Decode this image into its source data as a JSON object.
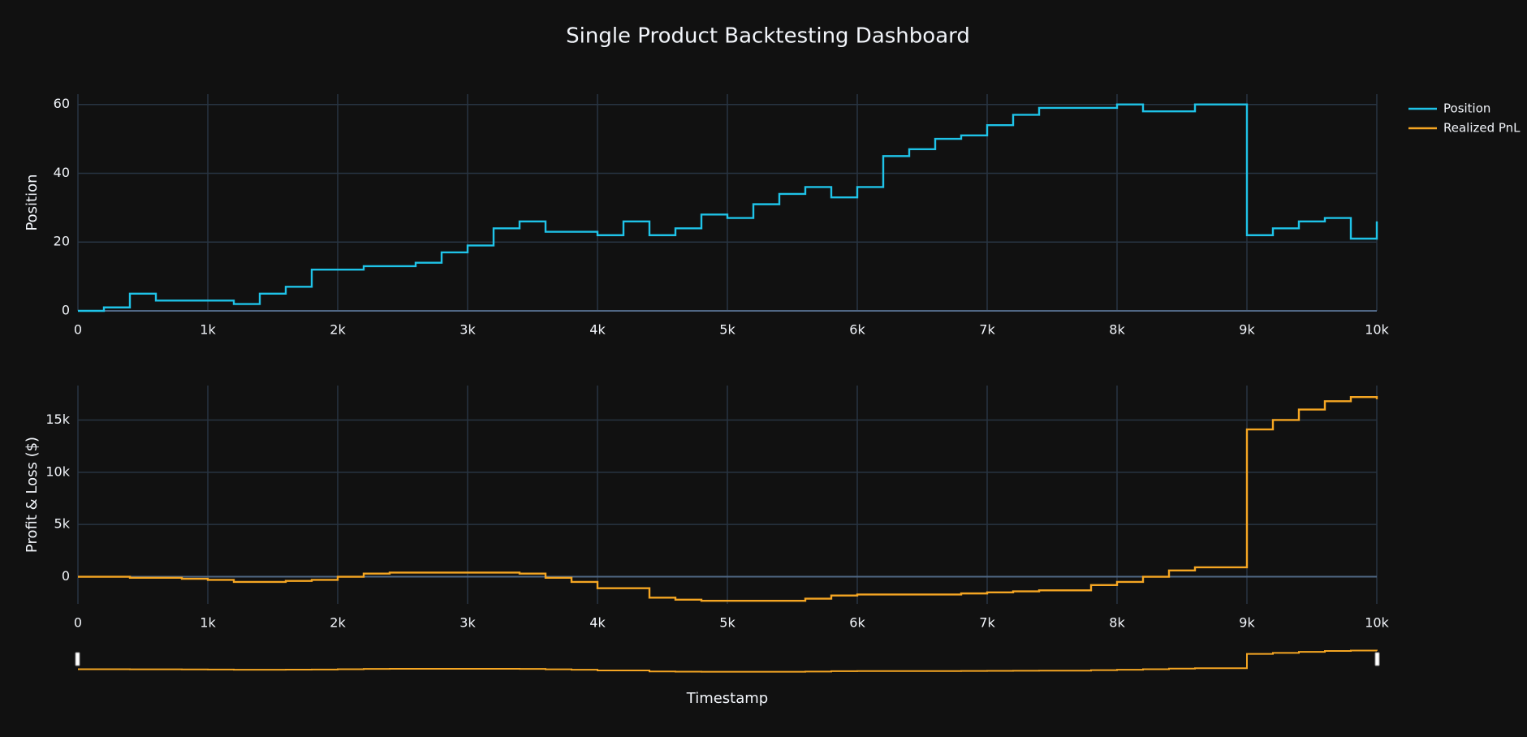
{
  "title": "Single Product Backtesting Dashboard",
  "xlabel": "Timestamp",
  "chart_data": [
    {
      "type": "line",
      "line_shape": "hv",
      "ylabel": "Position",
      "grid": true,
      "x": [
        0,
        200,
        400,
        600,
        800,
        1000,
        1200,
        1400,
        1600,
        1800,
        2000,
        2200,
        2400,
        2600,
        2800,
        3000,
        3200,
        3400,
        3600,
        3800,
        4000,
        4200,
        4400,
        4600,
        4800,
        5000,
        5200,
        5400,
        5600,
        5800,
        6000,
        6200,
        6400,
        6600,
        6800,
        7000,
        7200,
        7400,
        7600,
        7800,
        8000,
        8200,
        8400,
        8600,
        8800,
        9000,
        9200,
        9400,
        9600,
        9800,
        10000
      ],
      "series": [
        {
          "name": "Position",
          "color": "#1fc3e8",
          "values": [
            0,
            1,
            5,
            3,
            3,
            3,
            2,
            5,
            7,
            12,
            12,
            13,
            13,
            14,
            17,
            19,
            24,
            26,
            23,
            23,
            22,
            26,
            22,
            24,
            28,
            27,
            31,
            34,
            36,
            33,
            36,
            45,
            47,
            50,
            51,
            54,
            57,
            59,
            59,
            59,
            60,
            58,
            58,
            60,
            60,
            22,
            24,
            26,
            27,
            21,
            26
          ]
        }
      ],
      "xlim": [
        0,
        10000
      ],
      "xticks": [
        0,
        {
          "value": 1000,
          "label": "1k"
        },
        {
          "value": 2000,
          "label": "2k"
        },
        {
          "value": 3000,
          "label": "3k"
        },
        {
          "value": 4000,
          "label": "4k"
        },
        {
          "value": 5000,
          "label": "5k"
        },
        {
          "value": 6000,
          "label": "6k"
        },
        {
          "value": 7000,
          "label": "7k"
        },
        {
          "value": 8000,
          "label": "8k"
        },
        {
          "value": 9000,
          "label": "9k"
        },
        {
          "value": 10000,
          "label": "10k"
        }
      ],
      "ylim": [
        0,
        63
      ],
      "yticks": [
        0,
        20,
        40,
        60
      ]
    },
    {
      "type": "line",
      "line_shape": "hv",
      "ylabel": "Profit & Loss ($)",
      "grid": true,
      "rangeslider": true,
      "x": [
        0,
        200,
        400,
        600,
        800,
        1000,
        1200,
        1400,
        1600,
        1800,
        2000,
        2200,
        2400,
        2600,
        2800,
        3000,
        3200,
        3400,
        3600,
        3800,
        4000,
        4200,
        4400,
        4600,
        4800,
        5000,
        5200,
        5400,
        5600,
        5800,
        6000,
        6200,
        6400,
        6600,
        6800,
        7000,
        7200,
        7400,
        7600,
        7800,
        8000,
        8200,
        8400,
        8600,
        8800,
        9000,
        9200,
        9400,
        9600,
        9800,
        10000
      ],
      "series": [
        {
          "name": "Realized PnL",
          "color": "#f5a623",
          "values": [
            0,
            0,
            -100,
            -100,
            -200,
            -300,
            -500,
            -500,
            -400,
            -300,
            0,
            300,
            400,
            400,
            400,
            400,
            400,
            300,
            -100,
            -500,
            -1100,
            -1100,
            -2000,
            -2200,
            -2300,
            -2300,
            -2300,
            -2300,
            -2100,
            -1800,
            -1700,
            -1700,
            -1700,
            -1700,
            -1600,
            -1500,
            -1400,
            -1300,
            -1300,
            -800,
            -500,
            0,
            600,
            900,
            900,
            14100,
            15000,
            16000,
            16800,
            17200,
            17000
          ]
        }
      ],
      "xlim": [
        0,
        10000
      ],
      "xticks": [
        0,
        {
          "value": 1000,
          "label": "1k"
        },
        {
          "value": 2000,
          "label": "2k"
        },
        {
          "value": 3000,
          "label": "3k"
        },
        {
          "value": 4000,
          "label": "4k"
        },
        {
          "value": 5000,
          "label": "5k"
        },
        {
          "value": 6000,
          "label": "6k"
        },
        {
          "value": 7000,
          "label": "7k"
        },
        {
          "value": 8000,
          "label": "8k"
        },
        {
          "value": 9000,
          "label": "9k"
        },
        {
          "value": 10000,
          "label": "10k"
        }
      ],
      "ylim": [
        -2600,
        18300
      ],
      "yticks": [
        0,
        {
          "value": 5000,
          "label": "5k"
        },
        {
          "value": 10000,
          "label": "10k"
        },
        {
          "value": 15000,
          "label": "15k"
        }
      ]
    }
  ]
}
